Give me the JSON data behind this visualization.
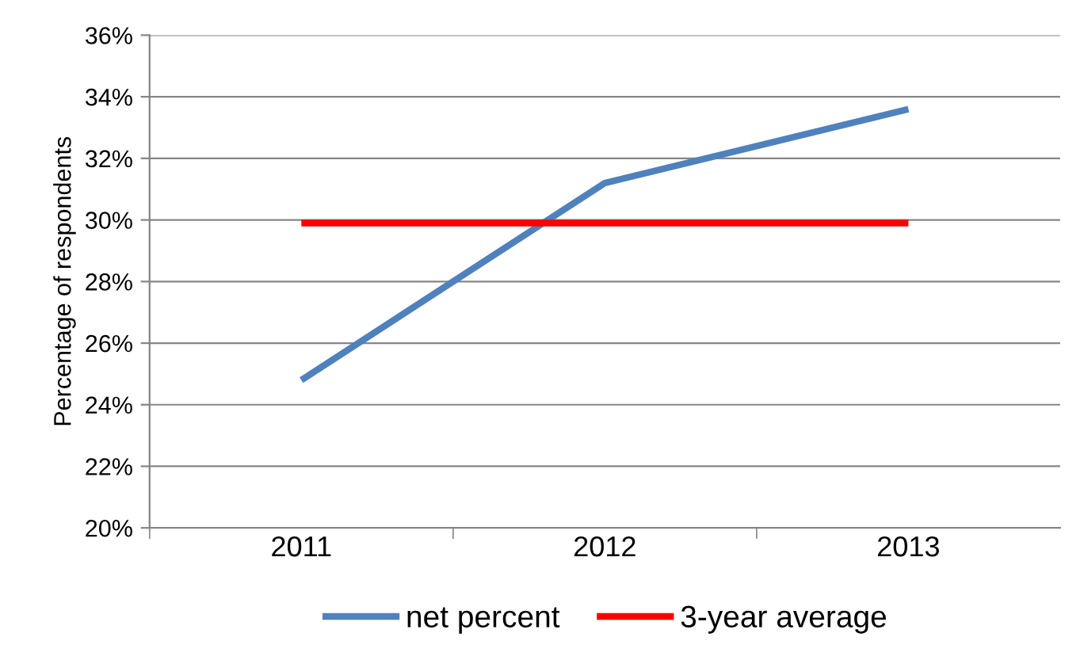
{
  "chart_data": {
    "type": "line",
    "ylabel": "Percentage of respondents",
    "categories": [
      "2011",
      "2012",
      "2013"
    ],
    "series": [
      {
        "name": "net percent",
        "color": "#4f81bd",
        "values": [
          24.8,
          31.2,
          33.6
        ]
      },
      {
        "name": "3-year average",
        "color": "#ff0000",
        "values": [
          29.9,
          29.9,
          29.9
        ]
      }
    ],
    "ylim": [
      20,
      36
    ],
    "yticks": [
      {
        "value": 20,
        "label": "20%"
      },
      {
        "value": 22,
        "label": "22%"
      },
      {
        "value": 24,
        "label": "24%"
      },
      {
        "value": 26,
        "label": "26%"
      },
      {
        "value": 28,
        "label": "28%"
      },
      {
        "value": 30,
        "label": "30%"
      },
      {
        "value": 32,
        "label": "32%"
      },
      {
        "value": 34,
        "label": "34%"
      },
      {
        "value": 36,
        "label": "36%"
      }
    ],
    "grid": "y",
    "legend": "bottom",
    "marker": "none",
    "line_style": "solid"
  }
}
